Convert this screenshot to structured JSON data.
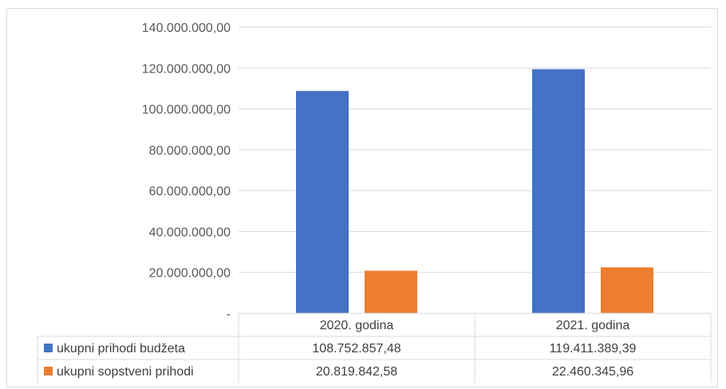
{
  "chart_data": {
    "type": "bar",
    "categories": [
      "2020. godina",
      "2021. godina"
    ],
    "series": [
      {
        "name": "ukupni prihodi budžeta",
        "values": [
          108752857.48,
          119411389.39
        ],
        "value_labels": [
          "108.752.857,48",
          "119.411.389,39"
        ],
        "color": "#4472c4"
      },
      {
        "name": "ukupni sopstveni prihodi",
        "values": [
          20819842.58,
          22460345.96
        ],
        "value_labels": [
          "20.819.842,58",
          "22.460.345,96"
        ],
        "color": "#ed7d31"
      }
    ],
    "yticks": [
      0,
      20000000,
      40000000,
      60000000,
      80000000,
      100000000,
      120000000,
      140000000
    ],
    "ytick_labels": [
      "-",
      "20.000.000,00",
      "40.000.000,00",
      "60.000.000,00",
      "80.000.000,00",
      "100.000.000,00",
      "120.000.000,00",
      "140.000.000,00"
    ],
    "ylim": [
      0,
      140000000
    ],
    "grid": true,
    "legend": "data-table"
  }
}
